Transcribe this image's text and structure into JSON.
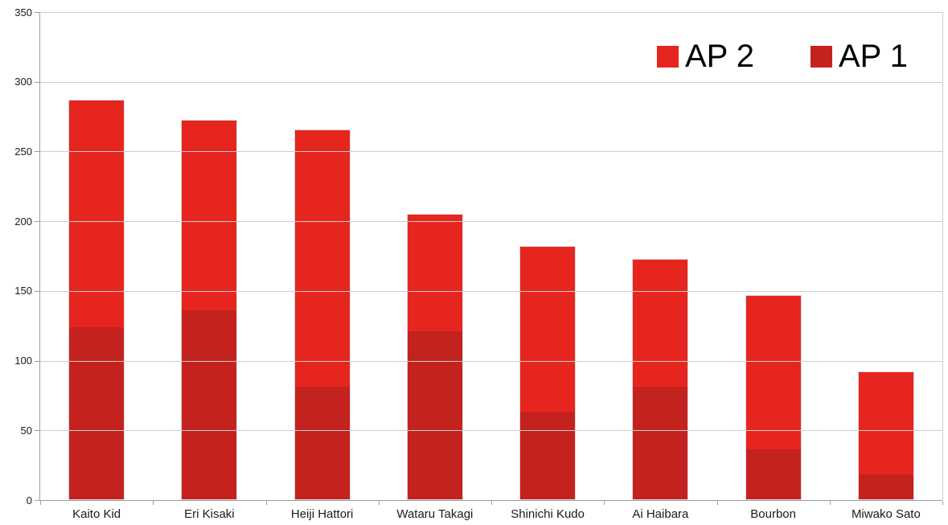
{
  "chart_data": {
    "type": "bar",
    "stacked": true,
    "title": "",
    "categories": [
      "Kaito Kid",
      "Eri Kisaki",
      "Heiji Hattori",
      "Wataru Takagi",
      "Shinichi Kudo",
      "Ai Haibara",
      "Bourbon",
      "Miwako Sato"
    ],
    "series": [
      {
        "name": "AP 2",
        "color": "#e7251f",
        "values": [
          163,
          137,
          185,
          84,
          119,
          92,
          111,
          74
        ]
      },
      {
        "name": "AP 1",
        "color": "#c4221e",
        "values": [
          124,
          136,
          81,
          121,
          63,
          81,
          36,
          18
        ]
      }
    ],
    "stack_order_bottom_to_top": [
      "AP 1",
      "AP 2"
    ],
    "stack_totals": [
      287,
      273,
      266,
      205,
      182,
      173,
      147,
      92
    ],
    "xlabel": "",
    "ylabel": "",
    "ylim": [
      0,
      350
    ],
    "yticks": [
      0,
      50,
      100,
      150,
      200,
      250,
      300,
      350
    ],
    "grid": "horizontal",
    "legend_position": "top-right"
  }
}
